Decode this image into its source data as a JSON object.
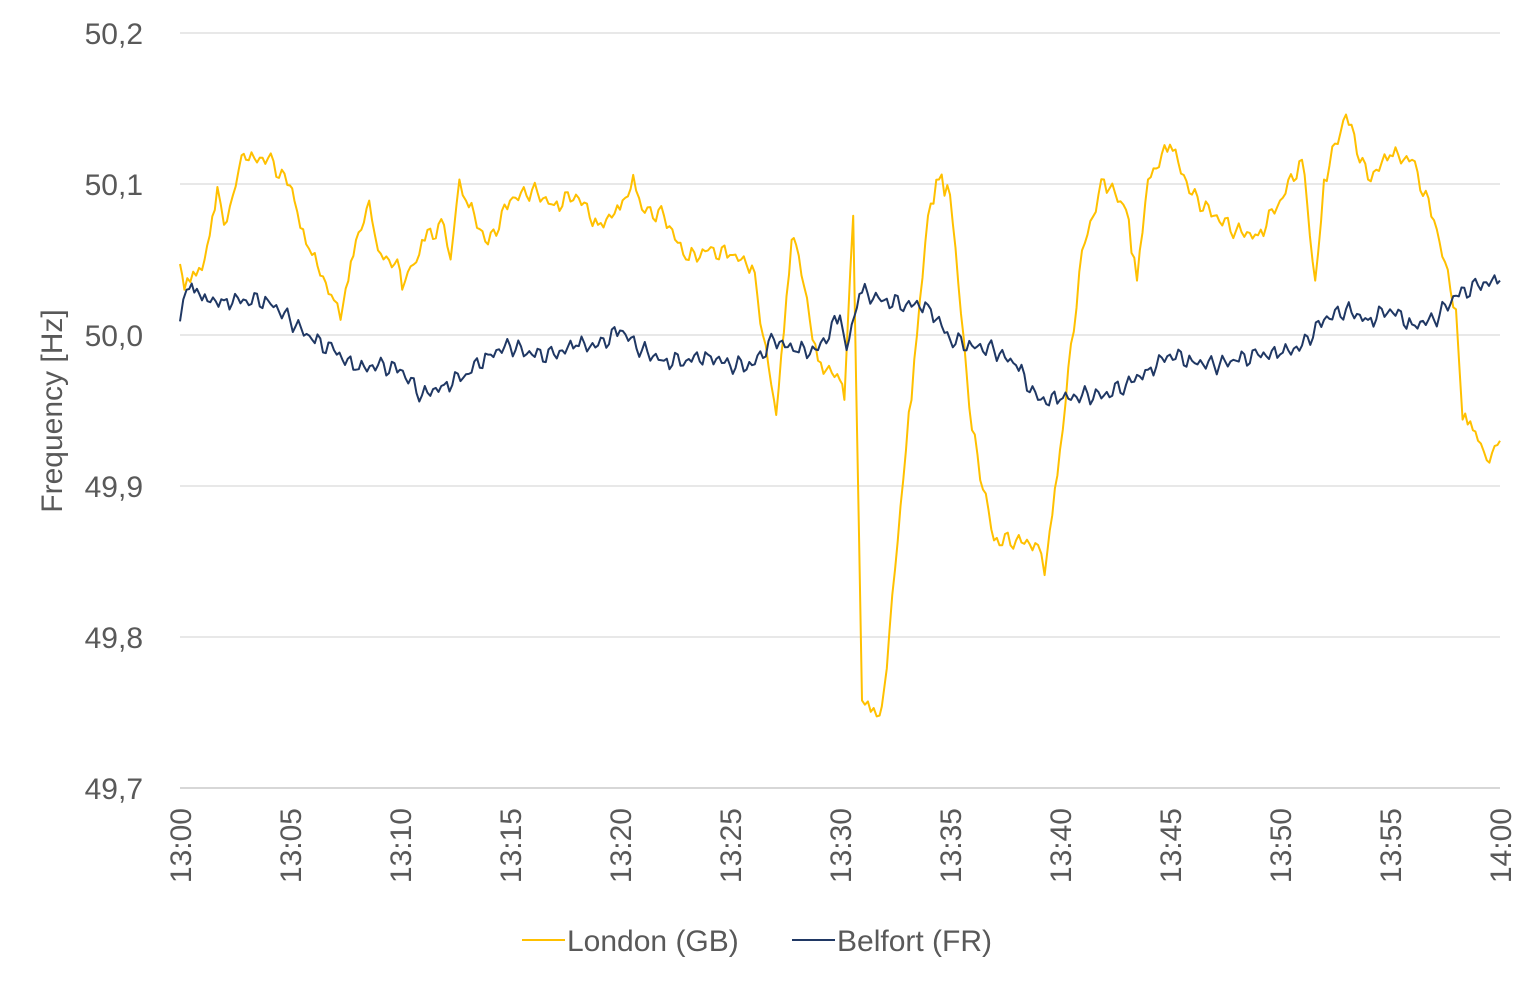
{
  "chart_data": {
    "type": "line",
    "title": "",
    "xlabel": "",
    "ylabel": "Frequency [Hz]",
    "ylim": [
      49.7,
      50.2
    ],
    "xlim_minutes": [
      0,
      60
    ],
    "grid": true,
    "legend_position": "bottom",
    "y_ticks": [
      "49,7",
      "49,8",
      "49,9",
      "50,0",
      "50,1",
      "50,2"
    ],
    "y_tick_values": [
      49.7,
      49.8,
      49.9,
      50.0,
      50.1,
      50.2
    ],
    "x_ticks": [
      "13:00",
      "13:05",
      "13:10",
      "13:15",
      "13:20",
      "13:25",
      "13:30",
      "13:35",
      "13:40",
      "13:45",
      "13:50",
      "13:55",
      "14:00"
    ],
    "x_tick_minutes": [
      0,
      5,
      10,
      15,
      20,
      25,
      30,
      35,
      40,
      45,
      50,
      55,
      60
    ],
    "series": [
      {
        "name": "London (GB)",
        "color": "#FFC000",
        "x": [
          0,
          0.2,
          1,
          1.7,
          2,
          2.8,
          3,
          4,
          5,
          5.2,
          6,
          7,
          7.3,
          8,
          8.6,
          9,
          10,
          10.1,
          11,
          12,
          12.3,
          12.7,
          13,
          14,
          15,
          16,
          17,
          18,
          19,
          20,
          20.6,
          21,
          22,
          23,
          24,
          25,
          26,
          27,
          27.1,
          27.8,
          28,
          29,
          30,
          30.2,
          30.6,
          31,
          31.8,
          32,
          33,
          33.5,
          34,
          34.5,
          35,
          36,
          37,
          38,
          39,
          39.3,
          40,
          41,
          42,
          43,
          43.5,
          44,
          45,
          46,
          47,
          48,
          49,
          50,
          51,
          51.6,
          52,
          53,
          54,
          55,
          56,
          57,
          58,
          58.3,
          59,
          59.4,
          60
        ],
        "values": [
          50.047,
          50.03,
          50.043,
          50.098,
          50.073,
          50.119,
          50.116,
          50.117,
          50.099,
          50.089,
          50.053,
          50.023,
          50.01,
          50.063,
          50.089,
          50.056,
          50.043,
          50.03,
          50.063,
          50.073,
          50.05,
          50.103,
          50.089,
          50.06,
          50.089,
          50.096,
          50.086,
          50.093,
          50.073,
          50.083,
          50.106,
          50.083,
          50.079,
          50.05,
          50.056,
          50.053,
          50.046,
          49.957,
          49.947,
          50.063,
          50.06,
          49.983,
          49.97,
          49.957,
          50.079,
          49.758,
          49.748,
          49.765,
          49.924,
          50.0,
          50.079,
          50.103,
          50.093,
          49.937,
          49.864,
          49.864,
          49.861,
          49.841,
          49.924,
          50.056,
          50.103,
          50.083,
          50.036,
          50.103,
          50.126,
          50.093,
          50.079,
          50.069,
          50.066,
          50.089,
          50.116,
          50.036,
          50.103,
          50.146,
          50.103,
          50.119,
          50.116,
          50.076,
          50.017,
          49.944,
          49.93,
          49.917,
          49.93
        ]
      },
      {
        "name": "Belfort (FR)",
        "color": "#203864",
        "x": [
          0,
          0.3,
          1,
          2,
          3,
          4,
          5,
          6,
          7,
          8,
          9,
          10,
          11,
          12,
          13,
          14,
          15,
          16,
          17,
          18,
          19,
          20,
          21,
          22,
          23,
          24,
          25,
          26,
          27,
          28,
          29,
          30,
          30.3,
          31,
          32,
          33,
          34,
          35,
          36,
          37,
          38,
          39,
          40,
          41,
          42,
          43,
          44,
          45,
          46,
          47,
          48,
          49,
          50,
          51,
          52,
          53,
          54,
          55,
          56,
          57,
          58,
          59,
          60
        ],
        "values": [
          50.009,
          50.03,
          50.023,
          50.023,
          50.023,
          50.023,
          50.01,
          49.997,
          49.99,
          49.977,
          49.98,
          49.977,
          49.96,
          49.967,
          49.974,
          49.987,
          49.993,
          49.987,
          49.987,
          49.993,
          49.993,
          50.003,
          49.99,
          49.983,
          49.983,
          49.987,
          49.98,
          49.98,
          49.997,
          49.989,
          49.99,
          50.013,
          49.99,
          50.028,
          50.023,
          50.02,
          50.02,
          49.997,
          49.993,
          49.99,
          49.98,
          49.957,
          49.957,
          49.96,
          49.96,
          49.967,
          49.977,
          49.987,
          49.983,
          49.98,
          49.983,
          49.987,
          49.987,
          49.993,
          50.01,
          50.017,
          50.01,
          50.017,
          50.007,
          50.01,
          50.026,
          50.033,
          50.036
        ]
      }
    ]
  }
}
